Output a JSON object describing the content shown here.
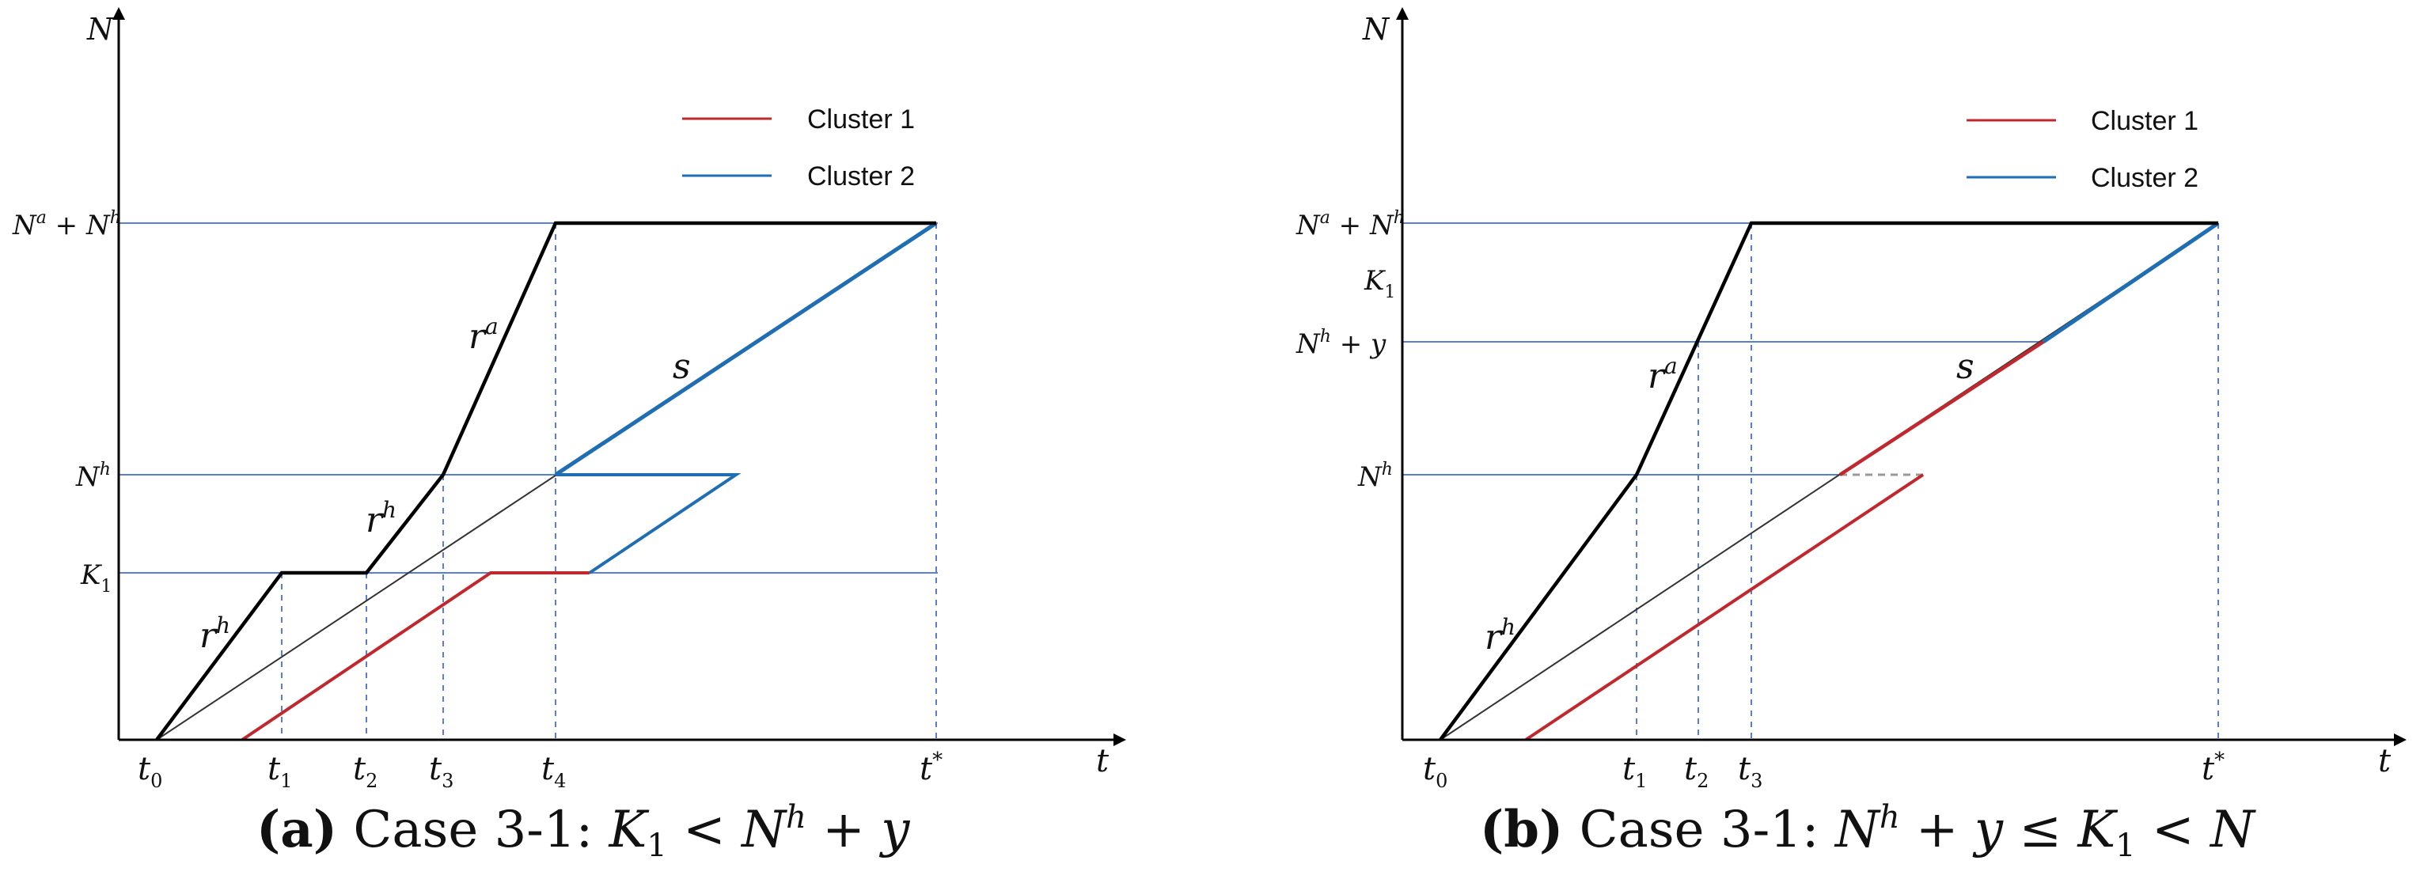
{
  "colors": {
    "axis": "#000000",
    "cumulative": "#000000",
    "cluster1": "#c0282d",
    "cluster2": "#1f6eb4",
    "guide": "#5b7fd0",
    "service": "#333333",
    "dashed_gray": "#999999"
  },
  "legend": {
    "cluster1": "Cluster 1",
    "cluster2": "Cluster 2"
  },
  "panel_a": {
    "y_axis": "N",
    "x_axis": "t",
    "y_ticks": {
      "na_nh": "N^a + N^h",
      "nh": "N^h",
      "k1": "K_1"
    },
    "x_ticks": [
      "t_0",
      "t_1",
      "t_2",
      "t_3",
      "t_4",
      "t^*"
    ],
    "curve_labels": {
      "ra": "r^a",
      "rh_upper": "r^h",
      "rh_lower": "r^h",
      "s": "s"
    },
    "caption": {
      "label": "(a)",
      "text": "Case 3-1: K_1 < N^h + y"
    }
  },
  "panel_b": {
    "y_axis": "N",
    "x_axis": "t",
    "y_ticks": {
      "na_nh": "N^a + N^h",
      "k1": "K_1",
      "nh_y": "N^h + y",
      "nh": "N^h"
    },
    "x_ticks": [
      "t_0",
      "t_1",
      "t_2",
      "t_3",
      "t^*"
    ],
    "curve_labels": {
      "ra": "r^a",
      "rh": "r^h",
      "s": "s"
    },
    "caption": {
      "label": "(b)",
      "text": "Case 3-1: N^h + y ≤ K_1 < N"
    }
  }
}
